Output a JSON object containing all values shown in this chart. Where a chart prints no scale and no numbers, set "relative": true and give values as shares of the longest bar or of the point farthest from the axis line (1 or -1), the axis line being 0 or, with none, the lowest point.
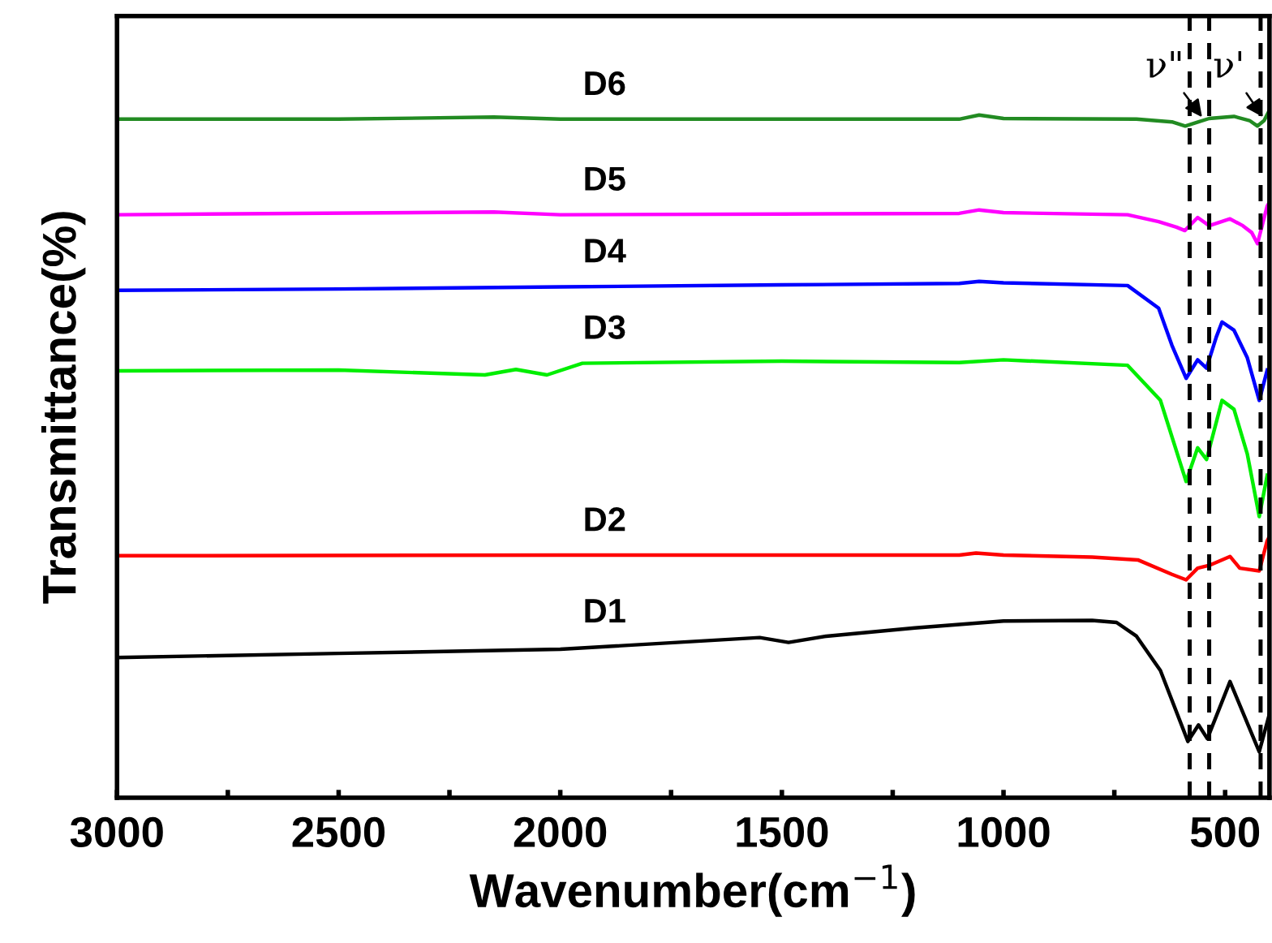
{
  "chart_data": {
    "type": "line",
    "xlabel": "Wavenumber(cm$^{−1}$)",
    "ylabel": "Transmittance(%)",
    "relative": true,
    "xlim": [
      3000,
      400
    ],
    "xticks": [
      3000,
      {
        "value": 2750,
        "label": null
      },
      2500,
      {
        "value": 2250,
        "label": null
      },
      2000,
      {
        "value": 1750,
        "label": null
      },
      1500,
      {
        "value": 1250,
        "label": null
      },
      1000,
      {
        "value": 750,
        "label": null
      },
      500
    ],
    "grid": false,
    "legend": false,
    "marker": "none",
    "line_style": "solid",
    "series": [
      {
        "name": "D1",
        "color": "#000000",
        "x": [
          3000,
          2500,
          2000,
          1550,
          1485,
          1400,
          1200,
          1000,
          800,
          745,
          700,
          646,
          584,
          560,
          540,
          489,
          423,
          400
        ],
        "values": [
          0.204,
          0.21,
          0.216,
          0.233,
          0.226,
          0.235,
          0.247,
          0.257,
          0.258,
          0.255,
          0.235,
          0.185,
          0.082,
          0.106,
          0.086,
          0.169,
          0.067,
          0.122
        ]
      },
      {
        "name": "D2",
        "color": "#ff0000",
        "x": [
          3000,
          2000,
          1500,
          1100,
          1062,
          1000,
          800,
          697,
          620,
          588,
          562,
          536,
          489,
          467,
          423,
          405,
          400
        ],
        "values": [
          0.352,
          0.353,
          0.353,
          0.353,
          0.356,
          0.353,
          0.35,
          0.346,
          0.325,
          0.317,
          0.334,
          0.338,
          0.351,
          0.334,
          0.33,
          0.374,
          0.38
        ]
      },
      {
        "name": "D3",
        "color": "#00ee00",
        "x": [
          3000,
          2500,
          2170,
          2100,
          2030,
          1950,
          1500,
          1100,
          1000,
          720,
          646,
          588,
          562,
          542,
          507,
          480,
          450,
          423,
          405
        ],
        "values": [
          0.621,
          0.622,
          0.615,
          0.623,
          0.615,
          0.632,
          0.635,
          0.633,
          0.637,
          0.629,
          0.578,
          0.46,
          0.509,
          0.492,
          0.578,
          0.565,
          0.5,
          0.409,
          0.469
        ]
      },
      {
        "name": "D4",
        "color": "#0000ff",
        "x": [
          3000,
          2500,
          2000,
          1500,
          1100,
          1055,
          1000,
          720,
          650,
          620,
          588,
          562,
          542,
          520,
          507,
          480,
          450,
          423,
          405
        ],
        "values": [
          0.738,
          0.74,
          0.743,
          0.746,
          0.748,
          0.751,
          0.749,
          0.745,
          0.712,
          0.658,
          0.61,
          0.637,
          0.625,
          0.67,
          0.692,
          0.68,
          0.64,
          0.578,
          0.622
        ]
      },
      {
        "name": "D5",
        "color": "#ff00ff",
        "x": [
          3000,
          2150,
          2000,
          1500,
          1100,
          1055,
          1000,
          720,
          650,
          610,
          591,
          562,
          536,
          489,
          460,
          440,
          427,
          405,
          400
        ],
        "values": [
          0.848,
          0.852,
          0.848,
          0.849,
          0.85,
          0.855,
          0.851,
          0.848,
          0.838,
          0.83,
          0.825,
          0.844,
          0.832,
          0.842,
          0.832,
          0.822,
          0.806,
          0.861,
          0.866
        ]
      },
      {
        "name": "D6",
        "color": "#228b22",
        "x": [
          3000,
          2500,
          2150,
          2000,
          1500,
          1100,
          1055,
          1000,
          700,
          620,
          590,
          560,
          536,
          480,
          445,
          427,
          412,
          400
        ],
        "values": [
          0.987,
          0.987,
          0.99,
          0.987,
          0.987,
          0.987,
          0.993,
          0.988,
          0.987,
          0.983,
          0.977,
          0.983,
          0.988,
          0.991,
          0.985,
          0.977,
          0.985,
          1.0
        ]
      }
    ],
    "ref_lines": [
      {
        "axis": "x",
        "value": 580,
        "color": "#000000",
        "line_style": "dashed"
      },
      {
        "axis": "x",
        "value": 536,
        "color": "#000000",
        "line_style": "dashed"
      },
      {
        "axis": "x",
        "value": 420,
        "color": "#000000",
        "line_style": "dashed"
      }
    ],
    "annotations": [
      {
        "text": "ν\"",
        "x": 552,
        "y": 0.99
      },
      {
        "text": "ν'",
        "x": 415,
        "y": 0.99
      }
    ]
  }
}
